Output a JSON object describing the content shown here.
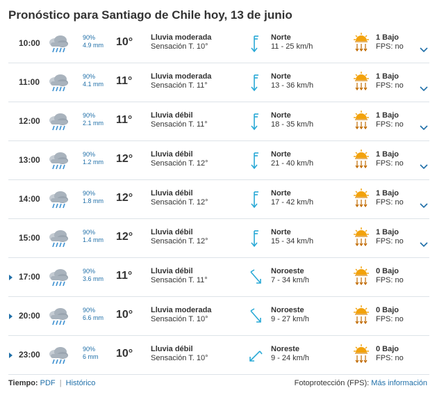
{
  "title": "Pronóstico para Santiago de Chile hoy, 13 de junio",
  "rows": [
    {
      "time": "10:00",
      "expandable": false,
      "icon": "rain-cloud-icon",
      "prob": "90%",
      "mm": "4.9 mm",
      "temp": "10°",
      "desc": "Lluvia moderada",
      "feel": "Sensación T. 10°",
      "wind_icon": "wind-north-icon",
      "wind_dir": "Norte",
      "wind_speed": "11 - 25 km/h",
      "uv_icon": "uv-sun-icon",
      "uv": "1 Bajo",
      "fps": "FPS: no",
      "chevron": true
    },
    {
      "time": "11:00",
      "expandable": false,
      "icon": "rain-cloud-icon",
      "prob": "90%",
      "mm": "4.1 mm",
      "temp": "11°",
      "desc": "Lluvia moderada",
      "feel": "Sensación T. 11°",
      "wind_icon": "wind-north-icon",
      "wind_dir": "Norte",
      "wind_speed": "13 - 36 km/h",
      "uv_icon": "uv-sun-icon",
      "uv": "1 Bajo",
      "fps": "FPS: no",
      "chevron": true
    },
    {
      "time": "12:00",
      "expandable": false,
      "icon": "rain-cloud-icon",
      "prob": "90%",
      "mm": "2.1 mm",
      "temp": "11°",
      "desc": "Lluvia débil",
      "feel": "Sensación T. 11°",
      "wind_icon": "wind-north-icon",
      "wind_dir": "Norte",
      "wind_speed": "18 - 35 km/h",
      "uv_icon": "uv-sun-icon",
      "uv": "1 Bajo",
      "fps": "FPS: no",
      "chevron": true
    },
    {
      "time": "13:00",
      "expandable": false,
      "icon": "rain-cloud-icon",
      "prob": "90%",
      "mm": "1.2 mm",
      "temp": "12°",
      "desc": "Lluvia débil",
      "feel": "Sensación T. 12°",
      "wind_icon": "wind-north-icon",
      "wind_dir": "Norte",
      "wind_speed": "21 - 40 km/h",
      "uv_icon": "uv-sun-icon",
      "uv": "1 Bajo",
      "fps": "FPS: no",
      "chevron": true
    },
    {
      "time": "14:00",
      "expandable": false,
      "icon": "rain-cloud-icon",
      "prob": "90%",
      "mm": "1.8 mm",
      "temp": "12°",
      "desc": "Lluvia débil",
      "feel": "Sensación T. 12°",
      "wind_icon": "wind-north-icon",
      "wind_dir": "Norte",
      "wind_speed": "17 - 42 km/h",
      "uv_icon": "uv-sun-icon",
      "uv": "1 Bajo",
      "fps": "FPS: no",
      "chevron": true
    },
    {
      "time": "15:00",
      "expandable": false,
      "icon": "rain-cloud-icon",
      "prob": "90%",
      "mm": "1.4 mm",
      "temp": "12°",
      "desc": "Lluvia débil",
      "feel": "Sensación T. 12°",
      "wind_icon": "wind-north-icon",
      "wind_dir": "Norte",
      "wind_speed": "15 - 34 km/h",
      "uv_icon": "uv-sun-icon",
      "uv": "1 Bajo",
      "fps": "FPS: no",
      "chevron": true
    },
    {
      "time": "17:00",
      "expandable": true,
      "icon": "rain-cloud-icon",
      "prob": "90%",
      "mm": "3.6 mm",
      "temp": "11°",
      "desc": "Lluvia débil",
      "feel": "Sensación T. 11°",
      "wind_icon": "wind-northwest-icon",
      "wind_dir": "Noroeste",
      "wind_speed": "7 - 34 km/h",
      "uv_icon": "uv-sun-icon",
      "uv": "0 Bajo",
      "fps": "FPS: no",
      "chevron": false
    },
    {
      "time": "20:00",
      "expandable": true,
      "icon": "rain-cloud-icon",
      "prob": "90%",
      "mm": "6.6 mm",
      "temp": "10°",
      "desc": "Lluvia moderada",
      "feel": "Sensación T. 10°",
      "wind_icon": "wind-northwest-icon",
      "wind_dir": "Noroeste",
      "wind_speed": "9 - 27 km/h",
      "uv_icon": "uv-sun-icon",
      "uv": "0 Bajo",
      "fps": "FPS: no",
      "chevron": false
    },
    {
      "time": "23:00",
      "expandable": true,
      "icon": "rain-cloud-icon",
      "prob": "90%",
      "mm": "6 mm",
      "temp": "10°",
      "desc": "Lluvia débil",
      "feel": "Sensación T. 10°",
      "wind_icon": "wind-northeast-icon",
      "wind_dir": "Noreste",
      "wind_speed": "9 - 24 km/h",
      "uv_icon": "uv-sun-icon",
      "uv": "0 Bajo",
      "fps": "FPS: no",
      "chevron": false
    }
  ],
  "footer": {
    "tiempo_label": "Tiempo:",
    "pdf_link": "PDF",
    "separator": "|",
    "historico_link": "Histórico",
    "fps_label": "Fotoprotección (FPS):",
    "more_info_link": "Más información"
  },
  "colors": {
    "link": "#1f6fa8",
    "wind_arrow": "#29a9d6",
    "sun": "#f2a20c",
    "cloud": "#9aa5b0",
    "rain": "#3a8fd0"
  }
}
